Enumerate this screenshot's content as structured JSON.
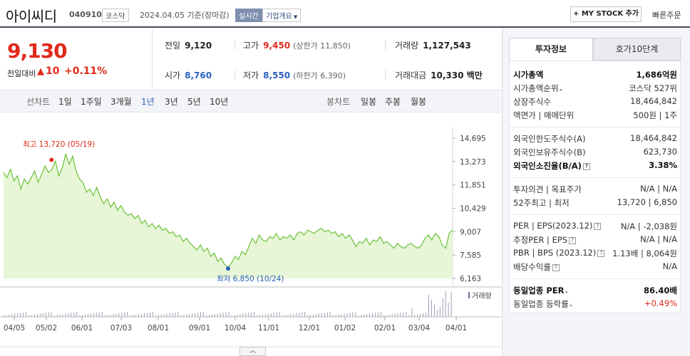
{
  "header": {
    "company_name": "아이씨디",
    "code": "040910",
    "market": "코스닥",
    "date_text": "2024.04.05  기준(장마감)",
    "realtime_badge": "실시간",
    "corp_info": "기업개요",
    "mystock_label": "+ MY STOCK 추가",
    "quick_order": "빠른주문"
  },
  "quote": {
    "price": "9,130",
    "change_label": "전일대비",
    "change_arrow": "▲",
    "change_value": "10",
    "change_pct": "+0.11%",
    "prev_close_label": "전일",
    "prev_close": "9,120",
    "high_label": "고가",
    "high": "9,450",
    "upper_limit": "(상한가 11,850)",
    "volume_label": "거래량",
    "volume": "1,127,543",
    "open_label": "시가",
    "open": "8,760",
    "low_label": "저가",
    "low": "8,550",
    "lower_limit": "(하한가 6,390)",
    "amount_label": "거래대금",
    "amount": "10,330 백만"
  },
  "periods": {
    "line_label": "선차트",
    "items": [
      "1일",
      "1주일",
      "3개월",
      "1년",
      "3년",
      "5년",
      "10년"
    ],
    "selected": "1년",
    "candle_label": "봉차트",
    "candle_items": [
      "일봉",
      "주봉",
      "월봉"
    ]
  },
  "panel": {
    "tab_info": "투자정보",
    "tab_orderbook": "호가10단계",
    "rows": [
      {
        "k": "시가총액",
        "v": "1,686억원",
        "bold": true
      },
      {
        "k": "시가총액순위",
        "v": "코스닥 527위",
        "arrow": true
      },
      {
        "k": "상장주식수",
        "v": "18,464,842"
      },
      {
        "k": "액면가 | 매매단위",
        "v": "500원 | 1주"
      },
      {
        "k": "외국인한도주식수(A)",
        "v": "18,464,842"
      },
      {
        "k": "외국인보유주식수(B)",
        "v": "623,730"
      },
      {
        "k": "외국인소진율(B/A)",
        "v": "3.38%",
        "bold": true,
        "q": true
      },
      {
        "k": "투자의견 | 목표주가",
        "v": "N/A | N/A"
      },
      {
        "k": "52주최고 | 최저",
        "v": "13,720 | 6,850"
      },
      {
        "k": "PER | EPS(2023.12)",
        "v": "N/A | -2,038원",
        "q": true
      },
      {
        "k": "추정PER | EPS",
        "v": "N/A | N/A",
        "q": true
      },
      {
        "k": "PBR | BPS (2023.12)",
        "v": "1.13배 | 8,064원",
        "q": true
      },
      {
        "k": "배당수익률",
        "v": "N/A",
        "q": true
      },
      {
        "k": "동일업종 PER",
        "v": "86.40배",
        "bold": true,
        "arrow": true
      },
      {
        "k": "동일업종 등락률",
        "v": "+0.49%",
        "red": true,
        "arrow": true
      }
    ]
  },
  "chart_data": {
    "type": "area",
    "y_ticks": [
      "14,695",
      "13,273",
      "11,851",
      "10,429",
      "9,007",
      "7,585",
      "6,163"
    ],
    "x_ticks": [
      "04/05",
      "05/02",
      "06/01",
      "07/03",
      "08/01",
      "09/01",
      "10/04",
      "11/01",
      "12/01",
      "01/02",
      "02/01",
      "03/04",
      "04/01"
    ],
    "high_annotation": "최고 13,720 (05/19)",
    "low_annotation": "최저 6,850 (10/24)",
    "volume_label": "거래량",
    "colors": {
      "line": "#6cc13a",
      "fill": "#e6f6d6",
      "high_dot": "#e0291a",
      "low_dot": "#2b5fbf",
      "volume": "#9aa0b4"
    },
    "ylim": [
      6163,
      14695
    ],
    "values": [
      12600,
      12300,
      12800,
      12100,
      12400,
      11600,
      12200,
      11900,
      12300,
      12700,
      12000,
      12500,
      13000,
      12600,
      12800,
      13300,
      12400,
      12900,
      13720,
      13100,
      13600,
      12700,
      12200,
      12000,
      11400,
      11600,
      11200,
      11700,
      11100,
      10700,
      11000,
      10500,
      10800,
      10300,
      10600,
      10200,
      10000,
      10100,
      9800,
      10000,
      9500,
      9700,
      9300,
      9500,
      9200,
      9400,
      9100,
      9200,
      8900,
      9000,
      8700,
      8800,
      8400,
      8600,
      8300,
      8100,
      7900,
      8200,
      7800,
      8000,
      7500,
      7700,
      7200,
      7400,
      7000,
      6850,
      7100,
      7500,
      7300,
      7800,
      7600,
      8100,
      8600,
      8300,
      8800,
      8500,
      8400,
      8700,
      8600,
      8900,
      8500,
      8700,
      8600,
      8800,
      8500,
      8900,
      9000,
      8800,
      9100,
      9000,
      8900,
      9100,
      9200,
      9000,
      9100,
      8900,
      9000,
      8700,
      8900,
      8600,
      8800,
      8500,
      8100,
      8400,
      8300,
      8600,
      8200,
      8500,
      8400,
      8700,
      8300,
      8400,
      8200,
      8000,
      8300,
      8100,
      8000,
      8200,
      8300,
      8100,
      8000,
      8200,
      8600,
      8800,
      8500,
      8900,
      8700,
      8200,
      8000,
      8900,
      9130
    ]
  }
}
